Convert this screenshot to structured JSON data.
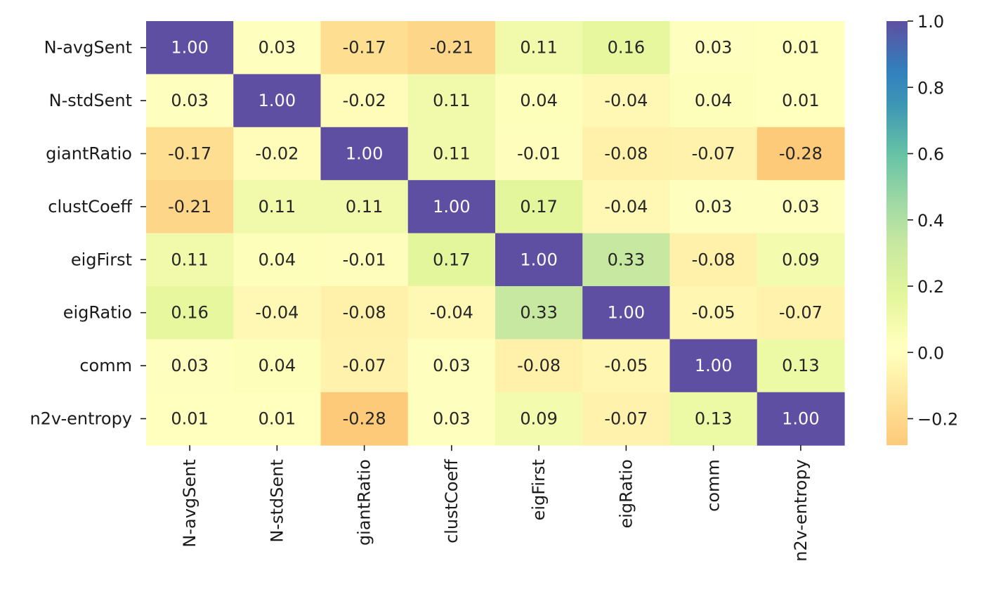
{
  "chart_data": {
    "type": "heatmap",
    "title": "",
    "xlabel": "",
    "ylabel": "",
    "rows": [
      "N-avgSent",
      "N-stdSent",
      "giantRatio",
      "clustCoeff",
      "eigFirst",
      "eigRatio",
      "comm",
      "n2v-entropy"
    ],
    "columns": [
      "N-avgSent",
      "N-stdSent",
      "giantRatio",
      "clustCoeff",
      "eigFirst",
      "eigRatio",
      "comm",
      "n2v-entropy"
    ],
    "values": [
      [
        1.0,
        0.03,
        -0.17,
        -0.21,
        0.11,
        0.16,
        0.03,
        0.01
      ],
      [
        0.03,
        1.0,
        -0.02,
        0.11,
        0.04,
        -0.04,
        0.04,
        0.01
      ],
      [
        -0.17,
        -0.02,
        1.0,
        0.11,
        -0.01,
        -0.08,
        -0.07,
        -0.28
      ],
      [
        -0.21,
        0.11,
        0.11,
        1.0,
        0.17,
        -0.04,
        0.03,
        0.03
      ],
      [
        0.11,
        0.04,
        -0.01,
        0.17,
        1.0,
        0.33,
        -0.08,
        0.09
      ],
      [
        0.16,
        -0.04,
        -0.08,
        -0.04,
        0.33,
        1.0,
        -0.05,
        -0.07
      ],
      [
        0.03,
        0.04,
        -0.07,
        0.03,
        -0.08,
        -0.05,
        1.0,
        0.13
      ],
      [
        0.01,
        0.01,
        -0.28,
        0.03,
        0.09,
        -0.07,
        0.13,
        1.0
      ]
    ],
    "value_format": "0.00",
    "colorbar": {
      "range": [
        -0.28,
        1.0
      ],
      "ticks": [
        1.0,
        0.8,
        0.6,
        0.4,
        0.2,
        0.0,
        -0.2
      ],
      "tick_labels": [
        "1.0",
        "0.8",
        "0.6",
        "0.4",
        "0.2",
        "0.0",
        "−0.2"
      ],
      "colormap": "Spectral",
      "placement": "right"
    }
  }
}
